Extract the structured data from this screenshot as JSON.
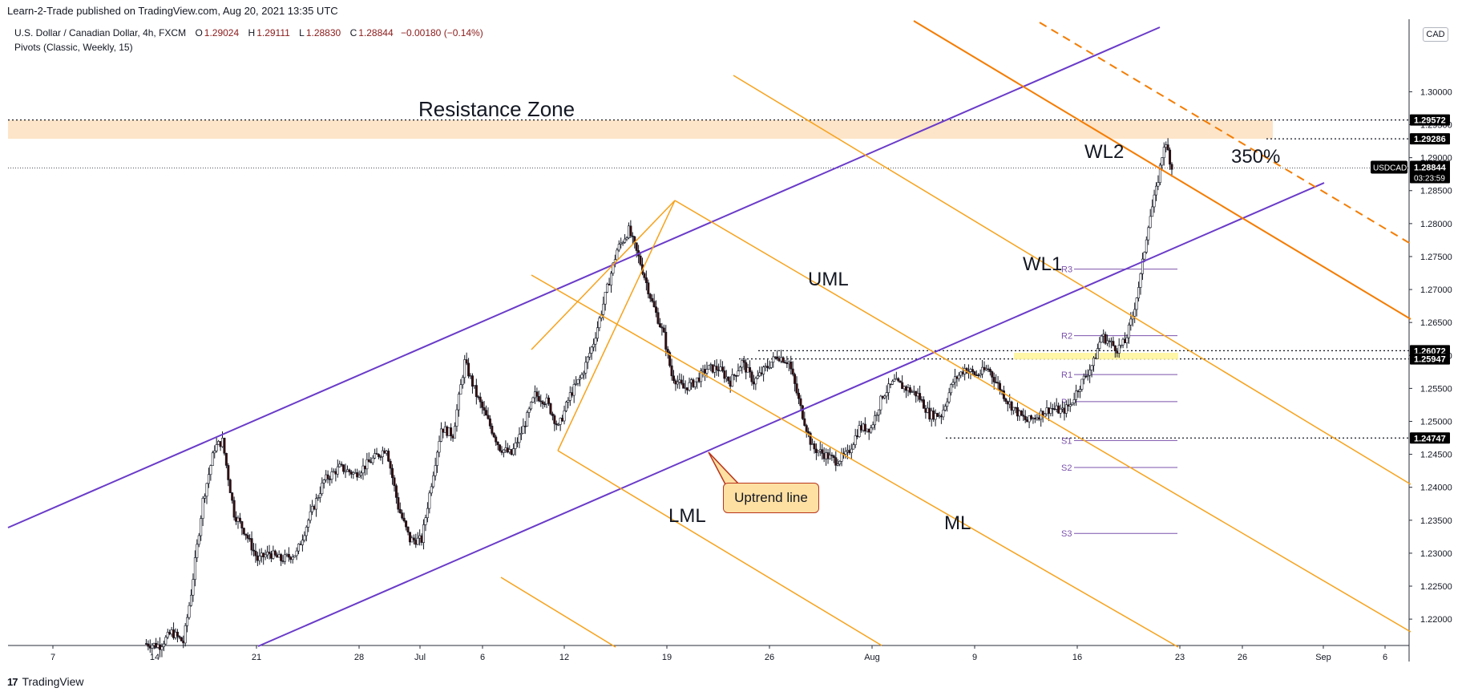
{
  "header": {
    "published": "Learn-2-Trade published on TradingView.com, Aug 20, 2021 13:35 UTC"
  },
  "legend": {
    "symbol": "U.S. Dollar / Canadian Dollar, 4h, FXCM",
    "open_label": "O",
    "open": "1.29024",
    "high_label": "H",
    "high": "1.29111",
    "low_label": "L",
    "low": "1.28830",
    "close_label": "C",
    "close": "1.28844",
    "change": "−0.00180 (−0.14%)",
    "indicator": "Pivots (Classic, Weekly, 15)"
  },
  "currency_tag": "CAD",
  "footer": {
    "brand": "TradingView",
    "logo": "17"
  },
  "colors": {
    "bull": "#ffffff",
    "bear": "#3b0a0a",
    "candle_outline": "#131722",
    "channel": "#6a3bc9",
    "fork": "#f7a21b",
    "wl": "#f57c00",
    "resistance_zone": "#fde0c0",
    "pivot": "#7b52ab",
    "highlight": "#fff59d"
  },
  "annotations": {
    "resistance_zone": "Resistance Zone",
    "uml": "UML",
    "lml": "LML",
    "ml": "ML",
    "wl1": "WL1",
    "wl2": "WL2",
    "pct": "350%",
    "uptrend": "Uptrend line"
  },
  "chart_data": {
    "type": "candlestick",
    "symbol": "USDCAD",
    "timeframe": "4h",
    "ylim": [
      1.216,
      1.311
    ],
    "y_ticks": [
      "1.30000",
      "1.29500",
      "1.29000",
      "1.28500",
      "1.28000",
      "1.27500",
      "1.27000",
      "1.26500",
      "1.26000",
      "1.25500",
      "1.25000",
      "1.24500",
      "1.24000",
      "1.23500",
      "1.23000",
      "1.22500",
      "1.22000"
    ],
    "x_ticks": [
      "7",
      "14",
      "21",
      "28",
      "Jul",
      "6",
      "12",
      "19",
      "26",
      "Aug",
      "9",
      "16",
      "23",
      "26",
      "Sep",
      "6"
    ],
    "price_labels": [
      {
        "value": 1.29572,
        "text": "1.29572"
      },
      {
        "value": 1.29286,
        "text": "1.29286"
      },
      {
        "value": 1.26072,
        "text": "1.26072"
      },
      {
        "value": 1.25947,
        "text": "1.25947"
      },
      {
        "value": 1.24747,
        "text": "1.24747"
      }
    ],
    "current": {
      "value": 1.28844,
      "text": "1.28844",
      "symbol": "USDCAD",
      "countdown": "03:23:59"
    },
    "resistance_zone": [
      1.29286,
      1.29572
    ],
    "pivots": [
      {
        "name": "R3",
        "value": 1.2731
      },
      {
        "name": "R2",
        "value": 1.263
      },
      {
        "name": "R1",
        "value": 1.2571
      },
      {
        "name": "P",
        "value": 1.253
      },
      {
        "name": "S1",
        "value": 1.2471
      },
      {
        "name": "S2",
        "value": 1.243
      },
      {
        "name": "S3",
        "value": 1.233
      }
    ],
    "waypoints": [
      [
        0,
        1.2163
      ],
      [
        8,
        1.216
      ],
      [
        14,
        1.218
      ],
      [
        20,
        1.2165
      ],
      [
        24,
        1.224
      ],
      [
        30,
        1.238
      ],
      [
        36,
        1.246
      ],
      [
        40,
        1.247
      ],
      [
        46,
        1.236
      ],
      [
        52,
        1.233
      ],
      [
        58,
        1.229
      ],
      [
        64,
        1.23
      ],
      [
        70,
        1.229
      ],
      [
        78,
        1.23
      ],
      [
        84,
        1.235
      ],
      [
        92,
        1.241
      ],
      [
        100,
        1.243
      ],
      [
        108,
        1.242
      ],
      [
        116,
        1.244
      ],
      [
        124,
        1.246
      ],
      [
        130,
        1.237
      ],
      [
        136,
        1.232
      ],
      [
        142,
        1.232
      ],
      [
        146,
        1.239
      ],
      [
        152,
        1.249
      ],
      [
        158,
        1.248
      ],
      [
        164,
        1.259
      ],
      [
        170,
        1.254
      ],
      [
        176,
        1.25
      ],
      [
        182,
        1.246
      ],
      [
        188,
        1.245
      ],
      [
        194,
        1.249
      ],
      [
        200,
        1.254
      ],
      [
        206,
        1.253
      ],
      [
        212,
        1.249
      ],
      [
        218,
        1.254
      ],
      [
        224,
        1.257
      ],
      [
        230,
        1.262
      ],
      [
        236,
        1.269
      ],
      [
        242,
        1.276
      ],
      [
        248,
        1.279
      ],
      [
        254,
        1.274
      ],
      [
        260,
        1.268
      ],
      [
        266,
        1.263
      ],
      [
        270,
        1.257
      ],
      [
        276,
        1.255
      ],
      [
        282,
        1.256
      ],
      [
        288,
        1.258
      ],
      [
        294,
        1.258
      ],
      [
        300,
        1.256
      ],
      [
        306,
        1.259
      ],
      [
        312,
        1.256
      ],
      [
        318,
        1.258
      ],
      [
        324,
        1.26
      ],
      [
        330,
        1.259
      ],
      [
        336,
        1.252
      ],
      [
        342,
        1.246
      ],
      [
        348,
        1.245
      ],
      [
        354,
        1.244
      ],
      [
        360,
        1.245
      ],
      [
        366,
        1.249
      ],
      [
        372,
        1.249
      ],
      [
        378,
        1.254
      ],
      [
        384,
        1.256
      ],
      [
        390,
        1.255
      ],
      [
        396,
        1.254
      ],
      [
        402,
        1.251
      ],
      [
        408,
        1.251
      ],
      [
        414,
        1.256
      ],
      [
        420,
        1.258
      ],
      [
        426,
        1.257
      ],
      [
        432,
        1.258
      ],
      [
        436,
        1.256
      ],
      [
        442,
        1.253
      ],
      [
        448,
        1.251
      ],
      [
        452,
        1.25
      ],
      [
        458,
        1.251
      ],
      [
        464,
        1.252
      ],
      [
        470,
        1.2515
      ],
      [
        474,
        1.2525
      ],
      [
        478,
        1.255
      ],
      [
        482,
        1.257
      ],
      [
        486,
        1.259
      ],
      [
        490,
        1.263
      ],
      [
        494,
        1.262
      ],
      [
        498,
        1.261
      ],
      [
        502,
        1.262
      ],
      [
        506,
        1.266
      ],
      [
        510,
        1.272
      ],
      [
        514,
        1.28
      ],
      [
        518,
        1.285
      ],
      [
        522,
        1.292
      ],
      [
        524,
        1.291
      ],
      [
        526,
        1.2884
      ]
    ]
  }
}
